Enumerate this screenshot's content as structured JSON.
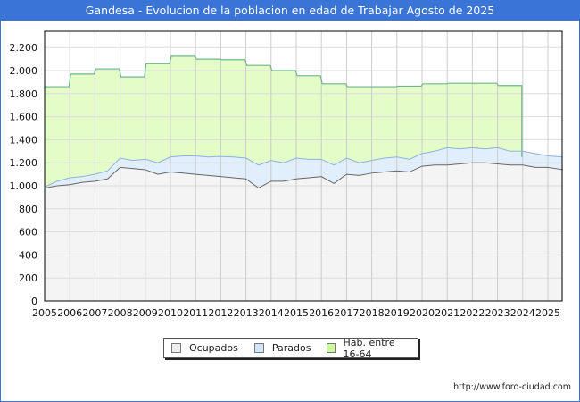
{
  "header": {
    "title": "Gandesa - Evolucion de la poblacion en edad de Trabajar Agosto de 2025"
  },
  "legend": {
    "items": [
      {
        "label": "Ocupados",
        "color": "#f2f2f2"
      },
      {
        "label": "Parados",
        "color": "#ddeeff"
      },
      {
        "label": "Hab. entre 16-64",
        "color": "#ccff99"
      }
    ]
  },
  "footer": {
    "credit": "http://www.foro-ciudad.com"
  },
  "chart_data": {
    "type": "area",
    "title": "Gandesa - Evolucion de la poblacion en edad de Trabajar Agosto de 2025",
    "xlabel": "",
    "ylabel": "",
    "ylim": [
      0,
      2300
    ],
    "xlim": [
      2005,
      2025.6
    ],
    "grid": true,
    "legend_position": "bottom",
    "y_ticks": [
      "0",
      "200",
      "400",
      "600",
      "800",
      "1.000",
      "1.200",
      "1.400",
      "1.600",
      "1.800",
      "2.000",
      "2.200"
    ],
    "x_ticks": [
      "2005",
      "2006",
      "2007",
      "2008",
      "2009",
      "2010",
      "2011",
      "2012",
      "2013",
      "2014",
      "2015",
      "2016",
      "2017",
      "2018",
      "2019",
      "2020",
      "2021",
      "2022",
      "2023",
      "2024",
      "2025"
    ],
    "series": [
      {
        "name": "Hab. entre 16-64",
        "step": true,
        "x": [
          2005,
          2006,
          2007,
          2008,
          2009,
          2010,
          2011,
          2012,
          2013,
          2014,
          2015,
          2016,
          2017,
          2018,
          2019,
          2020,
          2021,
          2022,
          2023
        ],
        "values": [
          1860,
          1970,
          2015,
          1945,
          2060,
          2125,
          2100,
          2095,
          2045,
          2000,
          1955,
          1885,
          1860,
          1860,
          1865,
          1885,
          1890,
          1890,
          1870
        ]
      },
      {
        "name": "Parados",
        "note": "top of stacked area (Ocupados + Parados)",
        "x": [
          2005,
          2005.5,
          2006,
          2006.5,
          2007,
          2007.5,
          2008,
          2008.5,
          2009,
          2009.5,
          2010,
          2010.5,
          2011,
          2011.5,
          2012,
          2012.5,
          2013,
          2013.5,
          2014,
          2014.5,
          2015,
          2015.5,
          2016,
          2016.5,
          2017,
          2017.5,
          2018,
          2018.5,
          2019,
          2019.5,
          2020,
          2020.5,
          2021,
          2021.5,
          2022,
          2022.5,
          2023,
          2023.5,
          2024,
          2024.5,
          2025,
          2025.6
        ],
        "values": [
          990,
          1040,
          1070,
          1080,
          1100,
          1130,
          1240,
          1220,
          1230,
          1200,
          1250,
          1260,
          1260,
          1250,
          1255,
          1250,
          1240,
          1180,
          1220,
          1200,
          1240,
          1230,
          1230,
          1180,
          1240,
          1200,
          1220,
          1240,
          1250,
          1230,
          1280,
          1300,
          1330,
          1320,
          1330,
          1320,
          1330,
          1300,
          1300,
          1280,
          1260,
          1250
        ]
      },
      {
        "name": "Ocupados",
        "x": [
          2005,
          2005.5,
          2006,
          2006.5,
          2007,
          2007.5,
          2008,
          2008.5,
          2009,
          2009.5,
          2010,
          2010.5,
          2011,
          2011.5,
          2012,
          2012.5,
          2013,
          2013.5,
          2014,
          2014.5,
          2015,
          2015.5,
          2016,
          2016.5,
          2017,
          2017.5,
          2018,
          2018.5,
          2019,
          2019.5,
          2020,
          2020.5,
          2021,
          2021.5,
          2022,
          2022.5,
          2023,
          2023.5,
          2024,
          2024.5,
          2025,
          2025.6
        ],
        "values": [
          980,
          1000,
          1010,
          1030,
          1040,
          1060,
          1160,
          1150,
          1140,
          1100,
          1120,
          1110,
          1100,
          1090,
          1080,
          1070,
          1060,
          980,
          1040,
          1040,
          1060,
          1070,
          1080,
          1020,
          1100,
          1090,
          1110,
          1120,
          1130,
          1120,
          1170,
          1180,
          1180,
          1190,
          1200,
          1200,
          1190,
          1180,
          1180,
          1160,
          1160,
          1140
        ]
      }
    ]
  }
}
